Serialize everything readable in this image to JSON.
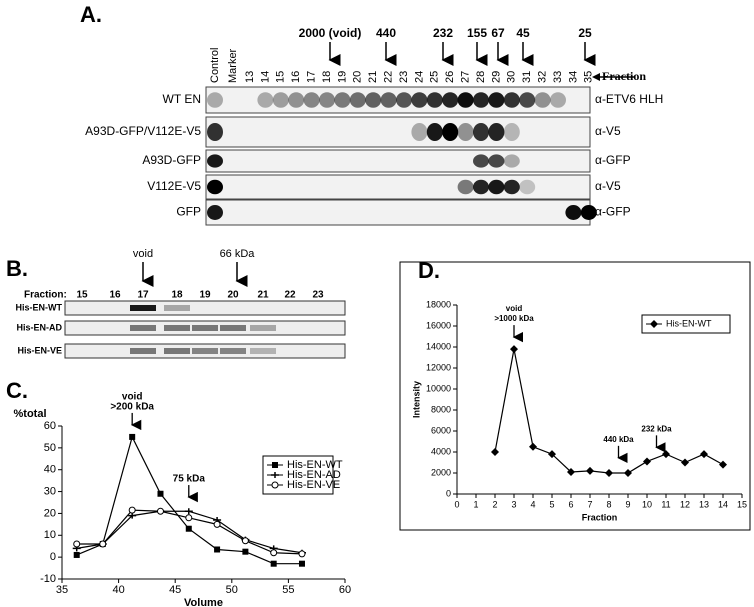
{
  "panel_a": {
    "label": "A.",
    "size_markers": [
      "2000 (void)",
      "440",
      "232",
      "155",
      "67",
      "45",
      "25"
    ],
    "fraction_label": "Fraction",
    "columns": [
      "Control",
      "Marker",
      "13",
      "14",
      "15",
      "16",
      "17",
      "18",
      "19",
      "20",
      "21",
      "22",
      "23",
      "24",
      "25",
      "26",
      "27",
      "28",
      "29",
      "30",
      "31",
      "32",
      "33",
      "34",
      "35"
    ],
    "rows": [
      {
        "name": "WT EN",
        "antibody": "α-ETV6 HLH"
      },
      {
        "name": "A93D-GFP/V112E-V5",
        "antibody": "α-V5"
      },
      {
        "name": "A93D-GFP",
        "antibody": "α-GFP"
      },
      {
        "name": "V112E-V5",
        "antibody": "α-V5"
      },
      {
        "name": "GFP",
        "antibody": "α-GFP"
      }
    ]
  },
  "panel_b": {
    "label": "B.",
    "markers": [
      "void",
      "66 kDa"
    ],
    "fraction_label": "Fraction:",
    "columns": [
      "15",
      "16",
      "17",
      "18",
      "19",
      "20",
      "21",
      "22",
      "23"
    ],
    "rows": [
      "His-EN-WT",
      "His-EN-AD",
      "His-EN-VE"
    ]
  },
  "panel_c_label": "C.",
  "panel_d_label": "D.",
  "chart_data": [
    {
      "type": "line",
      "xlabel": "Volume",
      "ylabel": "%total",
      "xlim": [
        35,
        60
      ],
      "xticks": [
        35,
        40,
        45,
        50,
        55,
        60
      ],
      "ylim": [
        -10,
        60
      ],
      "yticks": [
        -10,
        0,
        10,
        20,
        30,
        40,
        50,
        60
      ],
      "x": [
        36.3,
        38.6,
        41.2,
        43.7,
        46.2,
        48.7,
        51.2,
        53.7,
        56.2
      ],
      "series": [
        {
          "name": "His-EN-WT",
          "color": "#000000",
          "marker": "square",
          "values": [
            1,
            6,
            55,
            29,
            13,
            3.5,
            2.5,
            -3,
            -3
          ]
        },
        {
          "name": "His-EN-AD",
          "color": "#000000",
          "marker": "cross",
          "values": [
            4,
            6,
            19,
            21,
            21,
            17,
            8,
            4,
            2
          ]
        },
        {
          "name": "His-EN-VE",
          "color": "#000000",
          "marker": "circle",
          "values": [
            6,
            6,
            21.5,
            21,
            18,
            15,
            7.5,
            2,
            1.5
          ]
        }
      ],
      "annotations": [
        {
          "text": [
            "void",
            ">200 kDa"
          ],
          "x": 41.2,
          "y": 55
        },
        {
          "text": [
            "75 kDa"
          ],
          "x": 46.2,
          "y": 22
        }
      ],
      "legend": "upper right"
    },
    {
      "type": "line",
      "xlabel": "Fraction",
      "ylabel": "Intensity",
      "xlim": [
        0,
        15
      ],
      "xticks": [
        0,
        1,
        2,
        3,
        4,
        5,
        6,
        7,
        8,
        9,
        10,
        11,
        12,
        13,
        14,
        15
      ],
      "ylim": [
        0,
        18000
      ],
      "yticks": [
        0,
        2000,
        4000,
        6000,
        8000,
        10000,
        12000,
        14000,
        16000,
        18000
      ],
      "x": [
        2,
        3,
        4,
        5,
        6,
        7,
        8,
        9,
        10,
        11,
        12,
        13,
        14
      ],
      "series": [
        {
          "name": "His-EN-WT",
          "color": "#000000",
          "marker": "diamond",
          "values": [
            4000,
            13800,
            4500,
            3800,
            2100,
            2200,
            2000,
            2000,
            3100,
            3800,
            3000,
            3800,
            2800
          ]
        }
      ],
      "annotations": [
        {
          "text": [
            "void",
            ">1000 kDa"
          ],
          "x": 3,
          "y": 13800
        },
        {
          "text": [
            "440 kDa"
          ],
          "x": 8.5,
          "y": 2300
        },
        {
          "text": [
            "232 kDa"
          ],
          "x": 10.5,
          "y": 3300
        }
      ],
      "legend": "upper right"
    }
  ]
}
